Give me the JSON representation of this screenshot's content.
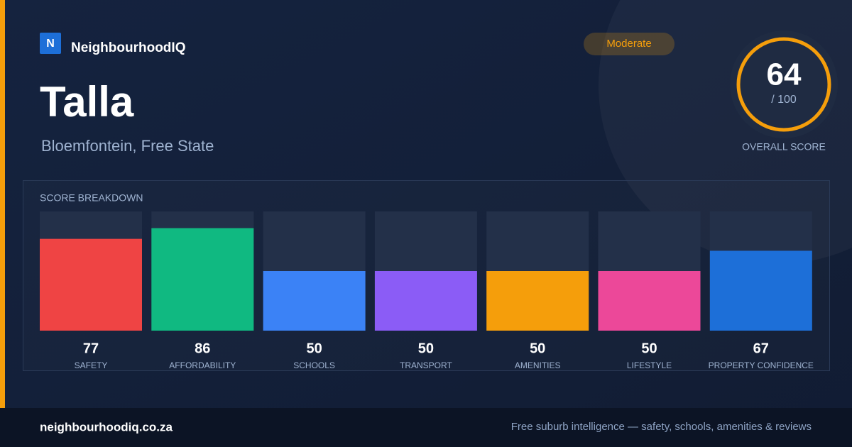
{
  "brand": {
    "logo": "N",
    "name": "NeighbourhoodIQ"
  },
  "badge": "Moderate",
  "title": "Talla",
  "location": "Bloemfontein, Free State",
  "overall": {
    "score": 64,
    "max": "/ 100",
    "label": "OVERALL SCORE"
  },
  "chart_data": {
    "type": "bar",
    "title": "SCORE BREAKDOWN",
    "categories": [
      "SAFETY",
      "AFFORDABILITY",
      "SCHOOLS",
      "TRANSPORT",
      "AMENITIES",
      "LIFESTYLE",
      "PROPERTY CONFIDENCE"
    ],
    "values": [
      77,
      86,
      50,
      50,
      50,
      50,
      67
    ],
    "colors": [
      "#ef4444",
      "#10b981",
      "#3b82f6",
      "#8b5cf6",
      "#f59e0b",
      "#ec4899",
      "#1d6fd8"
    ],
    "ylim": [
      0,
      100
    ]
  },
  "footer": {
    "site": "neighbourhoodiq.co.za",
    "tagline": "Free suburb intelligence — safety, schools, amenities & reviews"
  }
}
